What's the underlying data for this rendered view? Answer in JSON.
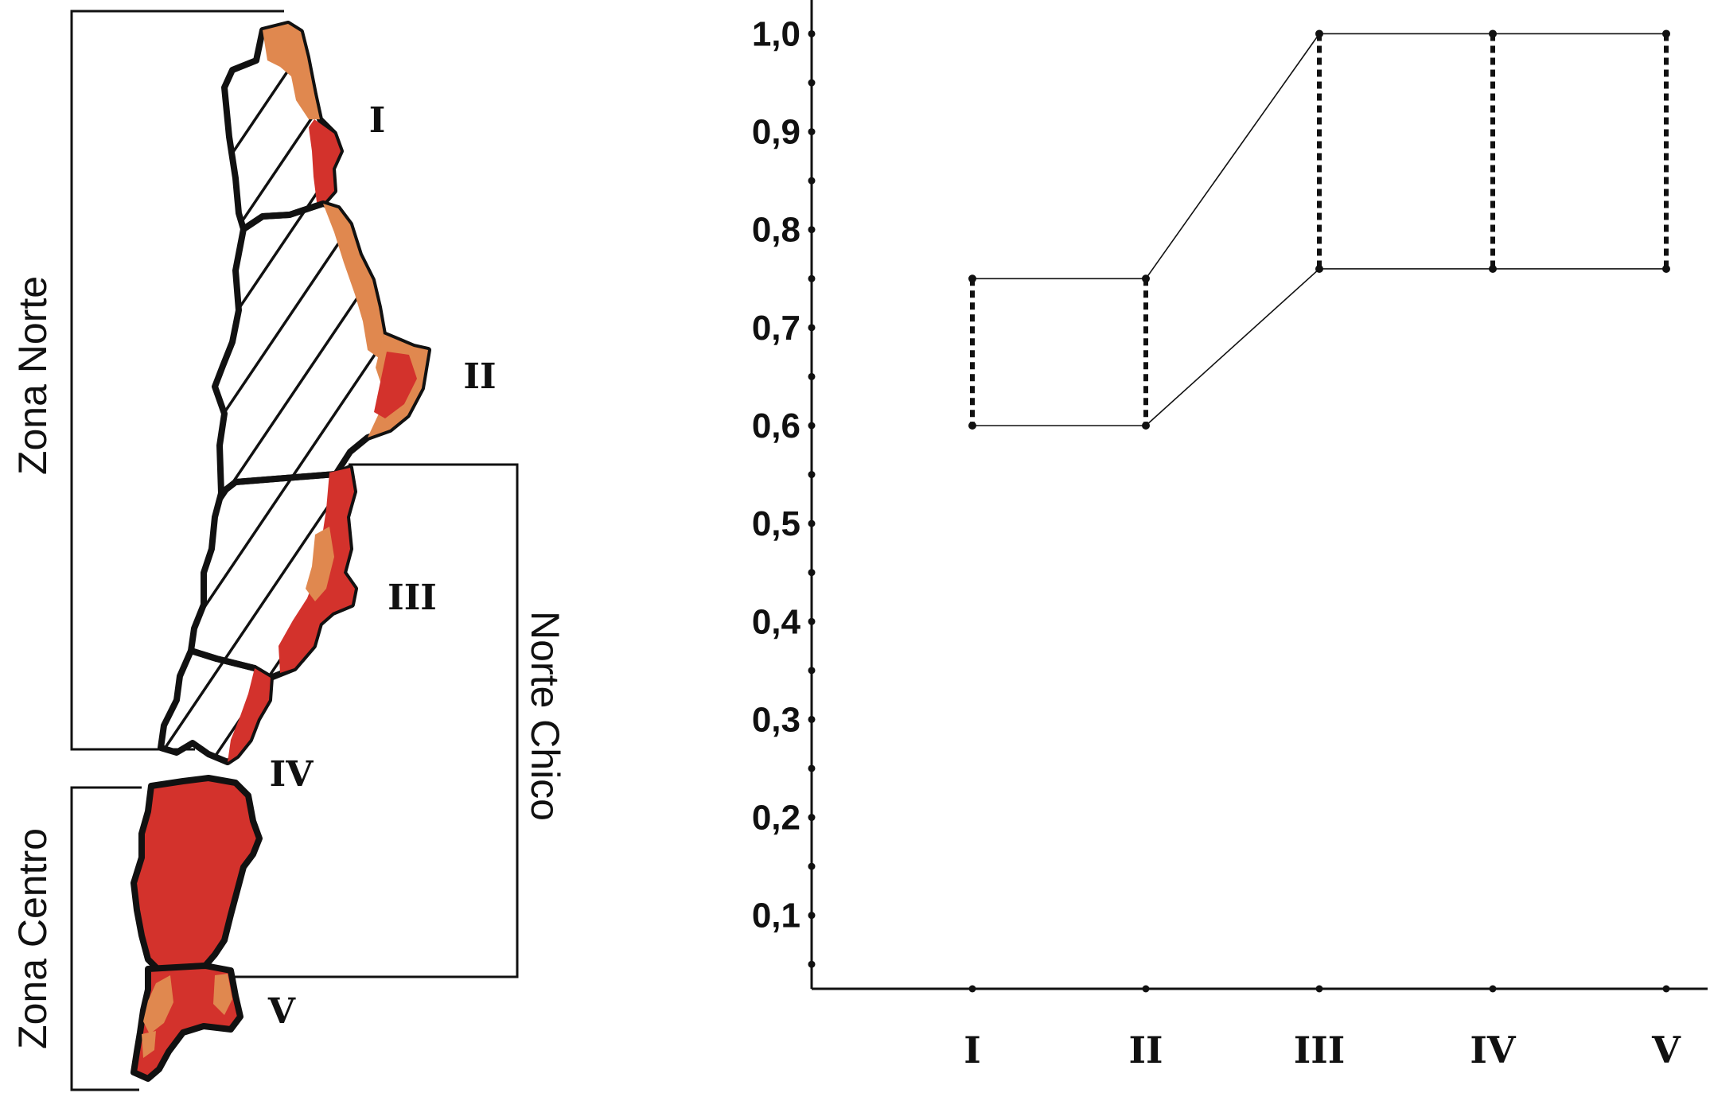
{
  "map": {
    "zone_norte": "Zona Norte",
    "norte_chico": "Norte Chico",
    "zona_centro": "Zona Centro",
    "regions": [
      "I",
      "II",
      "III",
      "IV",
      "V"
    ],
    "colors": {
      "orange": "#e0884f",
      "red": "#d3322c",
      "outline": "#111111"
    }
  },
  "chart_data": {
    "type": "range",
    "categories": [
      "I",
      "II",
      "III",
      "IV",
      "V"
    ],
    "y_ticks": [
      "0,1",
      "0,2",
      "0,3",
      "0,4",
      "0,5",
      "0,6",
      "0,7",
      "0,8",
      "0,9",
      "1,0"
    ],
    "ylim": [
      0.025,
      1.015
    ],
    "ranges": [
      {
        "category": "I",
        "low": 0.6,
        "high": 0.75
      },
      {
        "category": "II",
        "low": 0.6,
        "high": 0.75
      },
      {
        "category": "III",
        "low": 0.76,
        "high": 1.0
      },
      {
        "category": "IV",
        "low": 0.76,
        "high": 1.0
      },
      {
        "category": "V",
        "low": 0.76,
        "high": 1.0
      }
    ],
    "title": "",
    "xlabel": "",
    "ylabel": ""
  }
}
